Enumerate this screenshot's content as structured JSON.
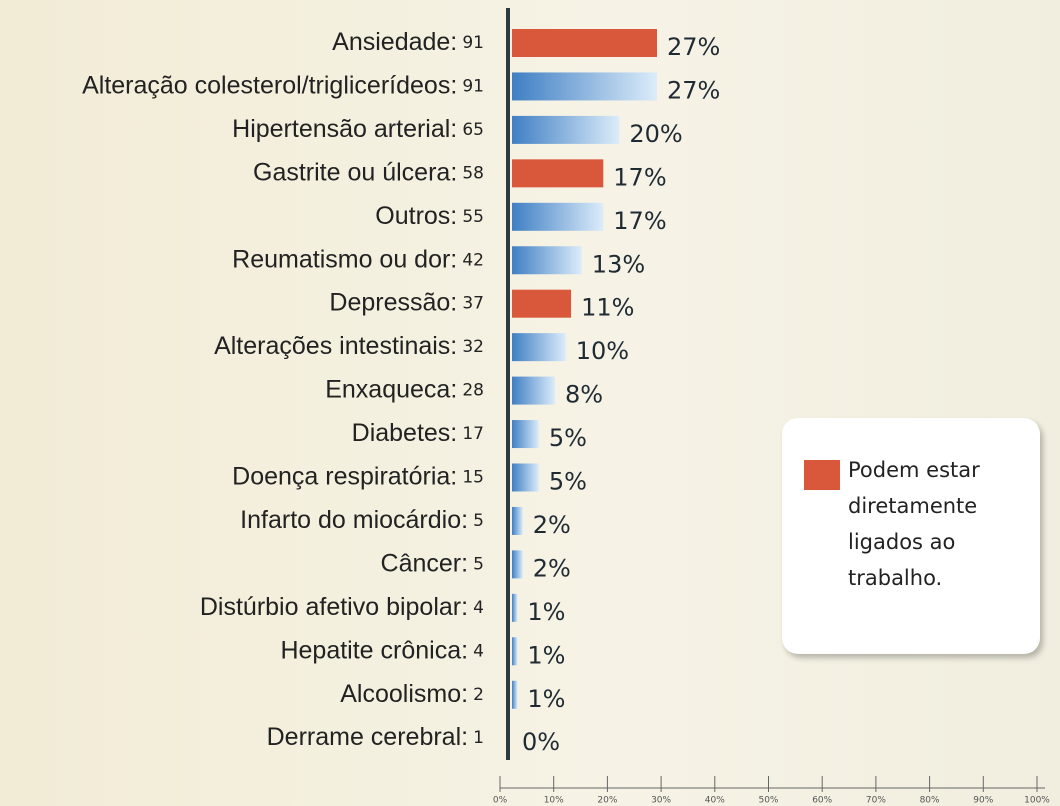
{
  "chart_data": {
    "type": "bar",
    "orientation": "horizontal",
    "categories": [
      "Ansiedade:",
      "Alteração colesterol/triglicerídeos:",
      "Hipertensão arterial:",
      "Gastrite ou úlcera:",
      "Outros:",
      "Reumatismo ou dor:",
      "Depressão:",
      "Alterações intestinais:",
      "Enxaqueca:",
      "Diabetes:",
      "Doença respiratória:",
      "Infarto do miocárdio:",
      "Câncer:",
      "Distúrbio afetivo bipolar:",
      "Hepatite crônica:",
      "Alcoolismo:",
      "Derrame cerebral:"
    ],
    "counts": [
      91,
      91,
      65,
      58,
      55,
      42,
      37,
      32,
      28,
      17,
      15,
      5,
      5,
      4,
      4,
      2,
      1
    ],
    "values": [
      27,
      27,
      20,
      17,
      17,
      13,
      11,
      10,
      8,
      5,
      5,
      2,
      2,
      1,
      1,
      1,
      0
    ],
    "value_labels": [
      "27%",
      "27%",
      "20%",
      "17%",
      "17%",
      "13%",
      "11%",
      "10%",
      "8%",
      "5%",
      "5%",
      "2%",
      "2%",
      "1%",
      "1%",
      "1%",
      "0%"
    ],
    "colors": [
      "#d9573a",
      "#4f8fd0",
      "#4f8fd0",
      "#d9573a",
      "#4f8fd0",
      "#4f8fd0",
      "#d9573a",
      "#4f8fd0",
      "#4f8fd0",
      "#4f8fd0",
      "#4f8fd0",
      "#4f8fd0",
      "#4f8fd0",
      "#4f8fd0",
      "#4f8fd0",
      "#4f8fd0",
      "#4f8fd0"
    ],
    "xlim": [
      0,
      100
    ],
    "xticks": [
      {
        "value": 0,
        "label": "0%"
      },
      {
        "value": 10,
        "label": "10%"
      },
      {
        "value": 20,
        "label": "20%"
      },
      {
        "value": 30,
        "label": "30%"
      },
      {
        "value": 40,
        "label": "40%"
      },
      {
        "value": 50,
        "label": "50%"
      },
      {
        "value": 60,
        "label": "60%"
      },
      {
        "value": 70,
        "label": "70%"
      },
      {
        "value": 80,
        "label": "80%"
      },
      {
        "value": 90,
        "label": "90%"
      },
      {
        "value": 100,
        "label": "100%"
      }
    ],
    "legend": {
      "label": "Podem estar diretamente ligados ao trabalho.",
      "color": "#d9573a",
      "position": "right"
    }
  }
}
